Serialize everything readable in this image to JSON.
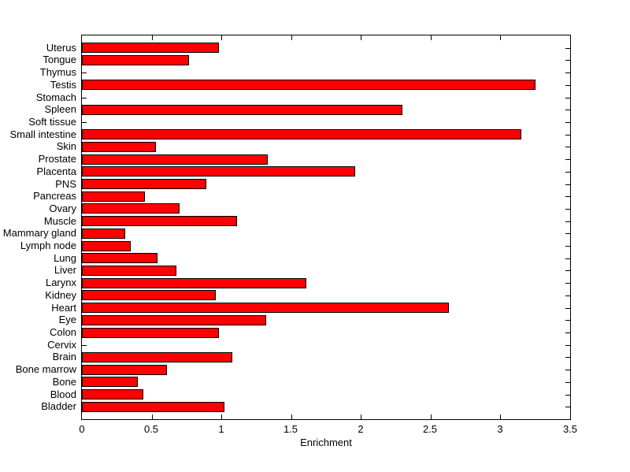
{
  "chart_data": {
    "type": "bar",
    "orientation": "horizontal",
    "title": "",
    "xlabel": "Enrichment",
    "ylabel": "",
    "xlim": [
      0,
      3.5
    ],
    "x_ticks": [
      0,
      0.5,
      1,
      1.5,
      2,
      2.5,
      3,
      3.5
    ],
    "x_tick_labels": [
      "0",
      "0.5",
      "1",
      "1.5",
      "2",
      "2.5",
      "3",
      "3.5"
    ],
    "grid": false,
    "legend": null,
    "category_order": "top-to-bottom",
    "categories": [
      "Uterus",
      "Tongue",
      "Thymus",
      "Testis",
      "Stomach",
      "Spleen",
      "Soft tissue",
      "Small intestine",
      "Skin",
      "Prostate",
      "Placenta",
      "PNS",
      "Pancreas",
      "Ovary",
      "Muscle",
      "Mammary gland",
      "Lymph node",
      "Lung",
      "Liver",
      "Larynx",
      "Kidney",
      "Heart",
      "Eye",
      "Colon",
      "Cervix",
      "Brain",
      "Bone marrow",
      "Bone",
      "Blood",
      "Bladder"
    ],
    "values": [
      0.98,
      0.77,
      0,
      3.25,
      0,
      2.3,
      0,
      3.15,
      0.53,
      1.33,
      1.96,
      0.89,
      0.45,
      0.7,
      1.11,
      0.31,
      0.35,
      0.54,
      0.68,
      1.61,
      0.96,
      2.63,
      1.32,
      0.98,
      0,
      1.08,
      0.61,
      0.4,
      0.44,
      1.02
    ],
    "colors": {
      "bar_fill": "#FF0000",
      "bar_edge": "#000000",
      "axis": "#000000",
      "background": "#FFFFFF",
      "text": "#000000"
    }
  }
}
